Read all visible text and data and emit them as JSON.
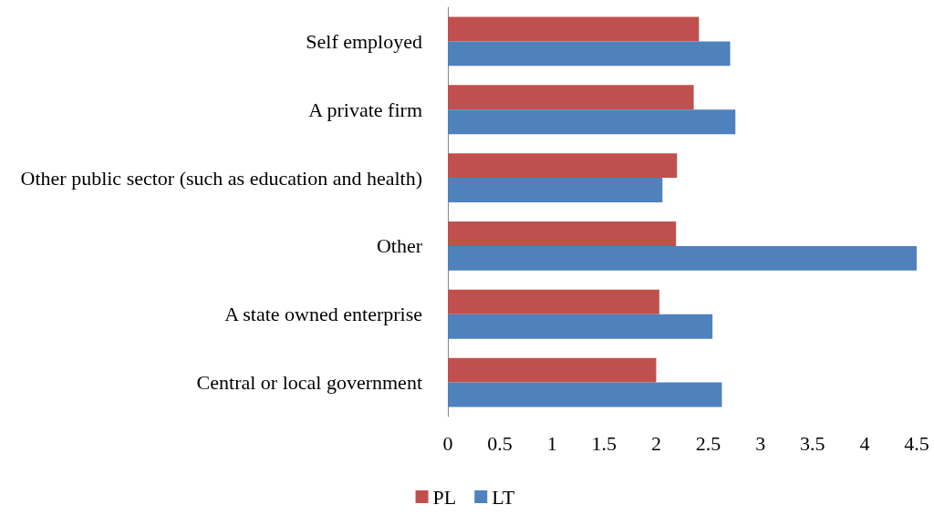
{
  "chart_data": {
    "type": "bar",
    "orientation": "horizontal",
    "categories": [
      "Self employed",
      "A private firm",
      "Other public sector (such as education and health)",
      "Other",
      "A state owned enterprise",
      "Central or local government"
    ],
    "series": [
      {
        "name": "PL",
        "color": "#c0504d",
        "values": [
          2.41,
          2.36,
          2.2,
          2.19,
          2.03,
          2.0
        ]
      },
      {
        "name": "LT",
        "color": "#4f81bd",
        "values": [
          2.71,
          2.76,
          2.06,
          4.5,
          2.54,
          2.63
        ]
      }
    ],
    "xlim": [
      0,
      4.5
    ],
    "xticks": [
      0,
      0.5,
      1,
      1.5,
      2,
      2.5,
      3,
      3.5,
      4,
      4.5
    ],
    "grid": false,
    "legend": "bottom"
  }
}
